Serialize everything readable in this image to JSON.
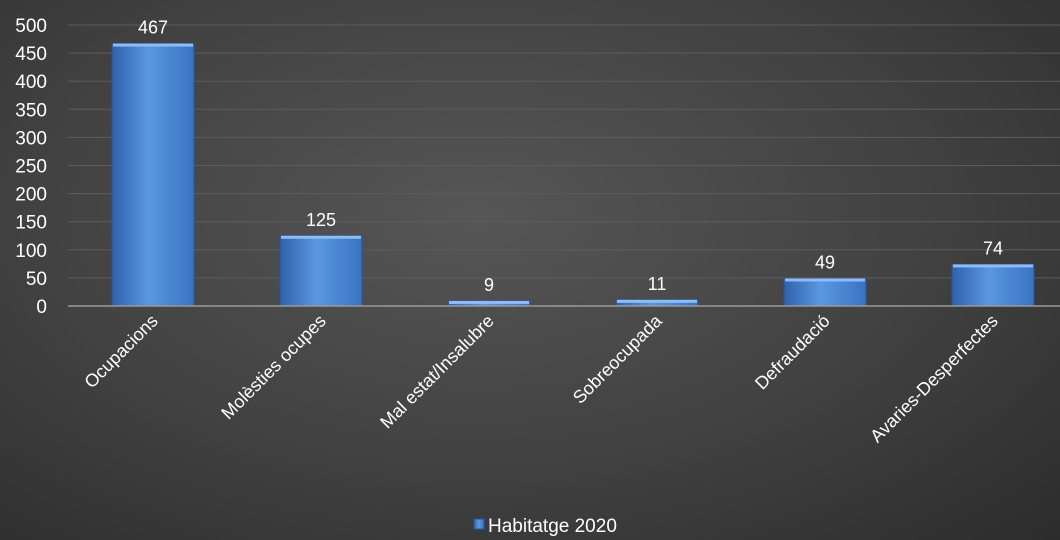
{
  "chart_data": {
    "type": "bar",
    "categories": [
      "Ocupacions",
      "Molèsties ocupes",
      "Mal estat/Insalubre",
      "Sobreocupada",
      "Defraudació",
      "Avaries-Desperfectes"
    ],
    "series": [
      {
        "name": "Habitatge 2020",
        "values": [
          467,
          125,
          9,
          11,
          49,
          74
        ]
      }
    ],
    "data_labels": [
      "467",
      "125",
      "9",
      "11",
      "49",
      "74"
    ],
    "ylim": [
      0,
      500
    ],
    "yticks": [
      0,
      50,
      100,
      150,
      200,
      250,
      300,
      350,
      400,
      450,
      500
    ],
    "grid": true,
    "legend_position": "bottom",
    "colors": {
      "bar": "#4a86d4",
      "bar_dark": "#2e5fa6",
      "bar_light": "#7db0ee",
      "grid": "#5c5c5c",
      "axis": "#9a9a9a",
      "text": "#ffffff"
    }
  }
}
